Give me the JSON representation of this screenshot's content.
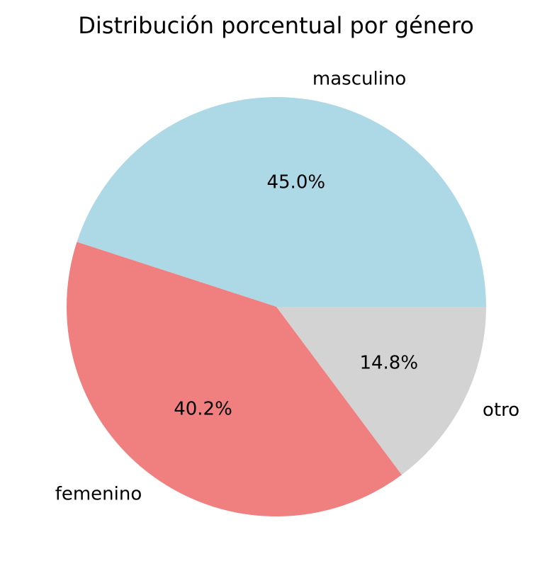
{
  "chart_data": {
    "type": "pie",
    "title": "Distribución porcentual por género",
    "slices": [
      {
        "label": "masculino",
        "value": 45.0,
        "pct_label": "45.0%",
        "color": "#add8e6"
      },
      {
        "label": "femenino",
        "value": 40.2,
        "pct_label": "40.2%",
        "color": "#f08080"
      },
      {
        "label": "otro",
        "value": 14.8,
        "pct_label": "14.8%",
        "color": "#d3d3d3"
      }
    ],
    "start_angle_deg": 0,
    "direction": "counterclockwise",
    "legend": false
  }
}
